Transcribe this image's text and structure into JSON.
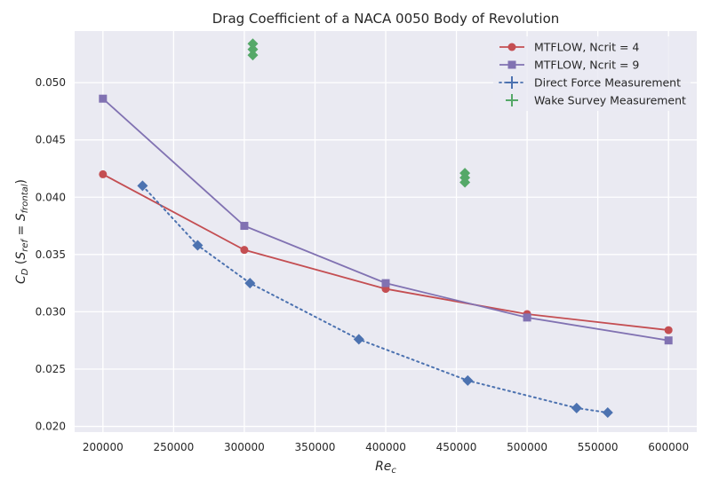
{
  "chart_data": {
    "type": "line",
    "title": "Drag Coefficient of a NACA 0050 Body of Revolution",
    "xlabel": "Re_c",
    "ylabel": "C_D (S_ref = S_frontal)",
    "xlim": [
      180000,
      620000
    ],
    "ylim": [
      0.0195,
      0.0545
    ],
    "x_ticks": [
      200000,
      250000,
      300000,
      350000,
      400000,
      450000,
      500000,
      550000,
      600000
    ],
    "x_tick_labels": [
      "200000",
      "250000",
      "300000",
      "350000",
      "400000",
      "450000",
      "500000",
      "550000",
      "600000"
    ],
    "y_ticks": [
      0.02,
      0.025,
      0.03,
      0.035,
      0.04,
      0.045,
      0.05
    ],
    "y_tick_labels": [
      "0.020",
      "0.025",
      "0.030",
      "0.035",
      "0.040",
      "0.045",
      "0.050"
    ],
    "grid": true,
    "legend_position": "top-right",
    "series": [
      {
        "name": "MTFLOW, Ncrit = 4",
        "color": "#c44e52",
        "marker": "circle",
        "line": "solid",
        "x": [
          200000,
          300000,
          400000,
          500000,
          600000
        ],
        "y": [
          0.042,
          0.0354,
          0.032,
          0.0298,
          0.0284
        ]
      },
      {
        "name": "MTFLOW, Ncrit = 9",
        "color": "#8172b2",
        "marker": "square",
        "line": "solid",
        "x": [
          200000,
          300000,
          400000,
          500000,
          600000
        ],
        "y": [
          0.0486,
          0.0375,
          0.0325,
          0.0295,
          0.0275
        ]
      },
      {
        "name": "Direct Force Measurement",
        "color": "#4c72b0",
        "marker": "diamond",
        "line": "dotted",
        "x": [
          228000,
          267000,
          304000,
          381000,
          458000,
          535000,
          557000
        ],
        "y": [
          0.041,
          0.0358,
          0.0325,
          0.0276,
          0.024,
          0.0216,
          0.0212
        ],
        "error_y": [
          0.0001,
          0.0001,
          0.0001,
          0.0001,
          0.0001,
          0.0001,
          0.0001
        ],
        "error_x": [
          3000,
          3000,
          3000,
          3000,
          3000,
          3000,
          3000
        ]
      },
      {
        "name": "Wake Survey Measurement",
        "color": "#55a868",
        "marker": "plus",
        "line": "none",
        "x": [
          306000,
          456000
        ],
        "y": [
          0.0529,
          0.0417
        ],
        "error_y": [
          0.0005,
          0.0004
        ],
        "error_x": [
          3000,
          3000
        ]
      }
    ]
  }
}
